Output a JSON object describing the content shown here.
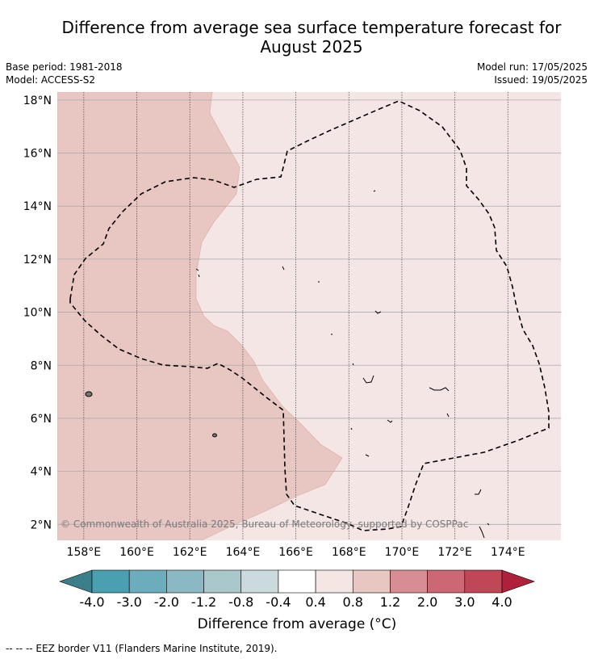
{
  "title_line1": "Difference from average sea surface temperature forecast for",
  "title_line2": "August 2025",
  "meta_left": {
    "base_period": "Base period: 1981-2018",
    "model": "Model: ACCESS-S2"
  },
  "meta_right": {
    "model_run": "Model run: 17/05/2025",
    "issued": "Issued: 19/05/2025"
  },
  "map": {
    "lat_labels": [
      "18°N",
      "16°N",
      "14°N",
      "12°N",
      "10°N",
      "8°N",
      "6°N",
      "4°N",
      "2°N"
    ],
    "lon_labels": [
      "158°E",
      "160°E",
      "162°E",
      "164°E",
      "166°E",
      "168°E",
      "170°E",
      "172°E",
      "174°E"
    ],
    "lon_range": [
      157,
      176
    ],
    "lat_range": [
      1.4,
      18.3
    ],
    "warm_band_color": "#e8c6c2",
    "light_band_color": "#f4e6e5",
    "copyright": "© Commonwealth of Australia 2025, Bureau of Meteorology, supported by COSPPac"
  },
  "colorbar": {
    "tick_labels": [
      "-4.0",
      "-3.0",
      "-2.0",
      "-1.2",
      "-0.8",
      "-0.4",
      "0.4",
      "0.8",
      "1.2",
      "2.0",
      "3.0",
      "4.0"
    ],
    "colors": [
      "#4a9fb0",
      "#6cadbd",
      "#8ab9c4",
      "#a8c8cc",
      "#cbdadc",
      "#ffffff",
      "#f4e6e5",
      "#e8c6c2",
      "#d88c94",
      "#cb6874",
      "#c04856"
    ],
    "low_extension_color": "#3a7f8a",
    "high_extension_color": "#b0203a",
    "title": "Difference from average (°C)"
  },
  "footer": "--  --  -- EEZ border V11 (Flanders Marine Institute, 2019)."
}
